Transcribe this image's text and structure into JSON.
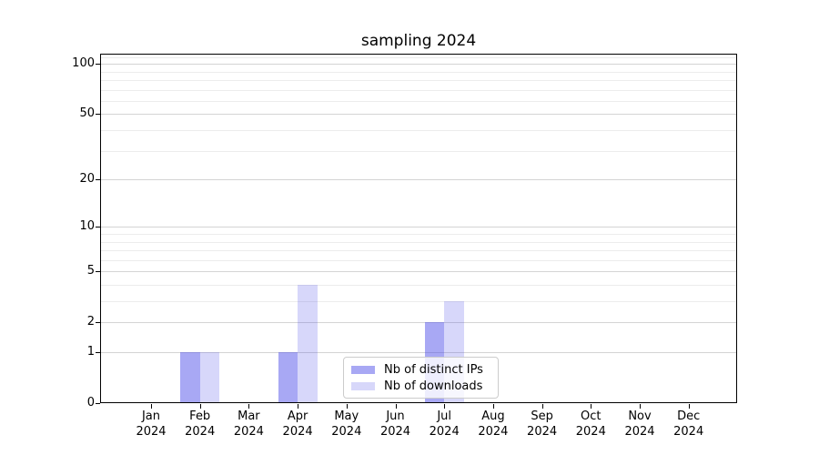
{
  "title": "sampling 2024",
  "chart_data": {
    "type": "bar",
    "title": "sampling 2024",
    "categories": [
      {
        "month": "Jan",
        "year": "2024"
      },
      {
        "month": "Feb",
        "year": "2024"
      },
      {
        "month": "Mar",
        "year": "2024"
      },
      {
        "month": "Apr",
        "year": "2024"
      },
      {
        "month": "May",
        "year": "2024"
      },
      {
        "month": "Jun",
        "year": "2024"
      },
      {
        "month": "Jul",
        "year": "2024"
      },
      {
        "month": "Aug",
        "year": "2024"
      },
      {
        "month": "Sep",
        "year": "2024"
      },
      {
        "month": "Oct",
        "year": "2024"
      },
      {
        "month": "Nov",
        "year": "2024"
      },
      {
        "month": "Dec",
        "year": "2024"
      }
    ],
    "series": [
      {
        "name": "Nb of distinct IPs",
        "values": [
          0,
          1,
          0,
          1,
          0,
          0,
          2,
          0,
          0,
          0,
          0,
          0
        ],
        "color": "rgba(66,66,232,0.46)"
      },
      {
        "name": "Nb of downloads",
        "values": [
          0,
          1,
          0,
          4,
          0,
          0,
          3,
          0,
          0,
          0,
          0,
          0
        ],
        "color": "rgba(66,66,232,0.21)"
      }
    ],
    "xlabel": "",
    "ylabel": "",
    "yscale": "log1p",
    "ylim": [
      0,
      115
    ],
    "y_major_ticks": [
      0,
      1,
      2,
      5,
      10,
      20,
      50,
      100
    ],
    "y_minor_ticks": [
      3,
      4,
      6,
      7,
      8,
      9,
      30,
      40,
      60,
      70,
      80,
      90,
      110
    ],
    "grid": true,
    "legend_position": "lower center",
    "style": {
      "grid_color_major": "#d4d4d4",
      "grid_color_minor": "#ececec",
      "axis_color": "#000000",
      "background": "#ffffff"
    }
  }
}
